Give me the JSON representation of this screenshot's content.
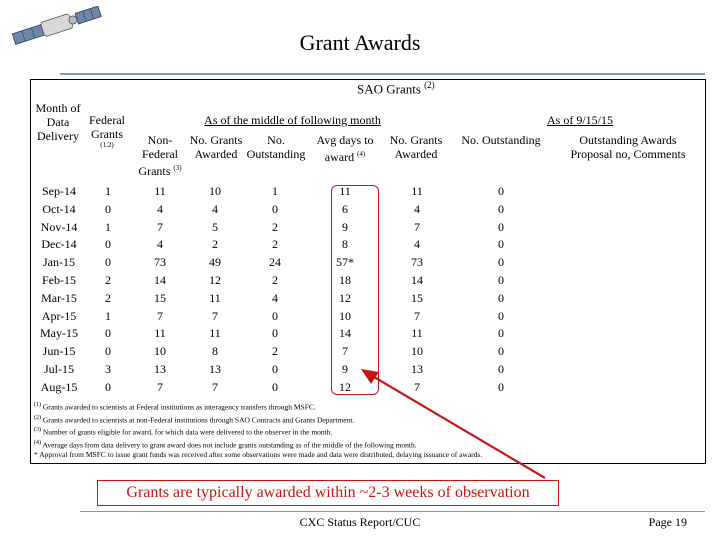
{
  "slide_title": "Grant Awards",
  "sao_header": "SAO Grants",
  "sao_header_sup": "(2)",
  "headers": {
    "month_of_data_delivery": [
      "Month of",
      "Data",
      "Delivery"
    ],
    "federal_grants": [
      "Federal",
      "Grants"
    ],
    "federal_grants_sup": "(1,2)",
    "group_mid_month": "As of the middle of following month",
    "group_as_of_date": "As of 9/15/15",
    "non_federal_grants": [
      "Non-",
      "Federal",
      "Grants"
    ],
    "non_federal_grants_sup": "(3)",
    "no_grants_awarded_mid": [
      "No. Grants",
      "Awarded"
    ],
    "no_outstanding_mid": [
      "No.",
      "Outstanding"
    ],
    "avg_days_to_award": [
      "Avg days to",
      "award"
    ],
    "avg_days_to_award_sup": "(4)",
    "no_grants_awarded_asof": [
      "No. Grants",
      "Awarded"
    ],
    "no_outstanding_asof": "No. Outstanding",
    "outstanding_awards": [
      "Outstanding Awards",
      "Proposal no, Comments"
    ]
  },
  "rows": [
    [
      "Sep-14",
      "1",
      "11",
      "10",
      "1",
      "11",
      "11",
      "0"
    ],
    [
      "Oct-14",
      "0",
      "4",
      "4",
      "0",
      "6",
      "4",
      "0"
    ],
    [
      "Nov-14",
      "1",
      "7",
      "5",
      "2",
      "9",
      "7",
      "0"
    ],
    [
      "Dec-14",
      "0",
      "4",
      "2",
      "2",
      "8",
      "4",
      "0"
    ],
    [
      "Jan-15",
      "0",
      "73",
      "49",
      "24",
      "57*",
      "73",
      "0"
    ],
    [
      "Feb-15",
      "2",
      "14",
      "12",
      "2",
      "18",
      "14",
      "0"
    ],
    [
      "Mar-15",
      "2",
      "15",
      "11",
      "4",
      "12",
      "15",
      "0"
    ],
    [
      "Apr-15",
      "1",
      "7",
      "7",
      "0",
      "10",
      "7",
      "0"
    ],
    [
      "May-15",
      "0",
      "11",
      "11",
      "0",
      "14",
      "11",
      "0"
    ],
    [
      "Jun-15",
      "0",
      "10",
      "8",
      "2",
      "7",
      "10",
      "0"
    ],
    [
      "Jul-15",
      "3",
      "13",
      "13",
      "0",
      "9",
      "13",
      "0"
    ],
    [
      "Aug-15",
      "0",
      "7",
      "7",
      "0",
      "12",
      "7",
      "0"
    ]
  ],
  "footnotes": [
    {
      "sup": "(1)",
      "text": "Grants awarded to scientists at Federal institutions as interagency transfers through MSFC."
    },
    {
      "sup": "(2)",
      "text": "Grants awarded to scientists at non-Federal institutions through SAO Contracts and Grants Department."
    },
    {
      "sup": "(3)",
      "text": "Number of grants eligible for award, for which data were delivered to the observer in the month."
    },
    {
      "sup": "(4)",
      "text": "Average days from data delivery to grant award does not include grants outstanding as of the middle of the following month."
    },
    {
      "sup": "",
      "text": "* Approval from MSFC to issue grant funds was received after some observations were made and data were distributed, delaying issuance of awards."
    }
  ],
  "callout": "Grants are typically awarded within ~2-3 weeks of observation",
  "footer_center": "CXC Status Report/CUC",
  "footer_page": "Page 19",
  "colors": {
    "accent_red": "#c81414",
    "rule_blue": "#7e9bb8"
  }
}
